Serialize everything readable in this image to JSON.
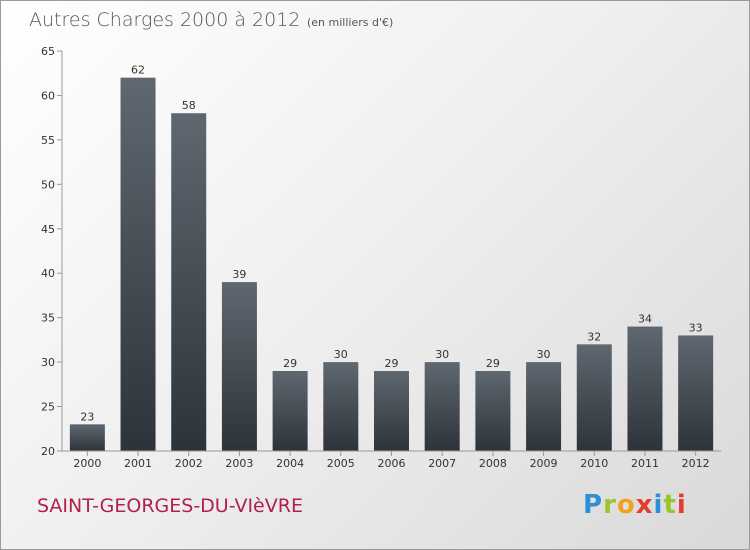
{
  "chart_data": {
    "type": "bar",
    "title": "Autres Charges 2000 à 2012",
    "subtitle": "(en milliers d'€)",
    "xlabel": "",
    "ylabel": "",
    "ylim": [
      20,
      65
    ],
    "yticks": [
      20,
      25,
      30,
      35,
      40,
      45,
      50,
      55,
      60,
      65
    ],
    "grid": false,
    "categories": [
      "2000",
      "2001",
      "2002",
      "2003",
      "2004",
      "2005",
      "2006",
      "2007",
      "2008",
      "2009",
      "2010",
      "2011",
      "2012"
    ],
    "values": [
      23,
      62,
      58,
      39,
      29,
      30,
      29,
      30,
      29,
      30,
      32,
      34,
      33
    ],
    "colors": {
      "bar_top": "#5f6770",
      "bar_bottom": "#2d333a",
      "axis": "#999999"
    }
  },
  "commune": "SAINT-GEORGES-DU-VIèVRE",
  "logo": {
    "letters": [
      {
        "char": "P",
        "color": "#2d8fd6"
      },
      {
        "char": "r",
        "color": "#9bc62b"
      },
      {
        "char": "o",
        "color": "#f0a21d"
      },
      {
        "char": "x",
        "color": "#e23d2e"
      },
      {
        "char": "i",
        "color": "#2d8fd6"
      },
      {
        "char": "t",
        "color": "#9bc62b"
      },
      {
        "char": "i",
        "color": "#e23d2e"
      }
    ]
  }
}
